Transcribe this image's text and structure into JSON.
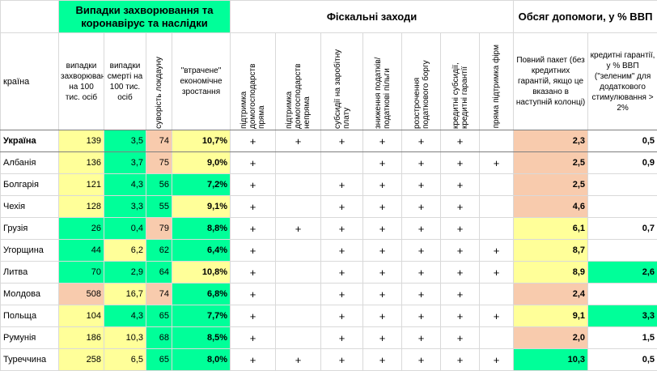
{
  "headers": {
    "group1": "Випадки захворювання та коронавірус та наслідки",
    "group2": "Фіскальні заходи",
    "group3": "Обсяг допомоги, у % ВВП",
    "country": "країна",
    "cases": "випадки захворювання на 100 тис. осіб",
    "deaths": "випадки смерті на 100 тис. осіб",
    "lockdown": "суворість локдауну",
    "lost_growth": "\"втрачене\" економічне зростання",
    "f1": "підтримка домогосподарств пряма",
    "f2": "підтримка домогосподарств непряма",
    "f3": "субсидії на заробітну плату",
    "f4": "зниження податків/ податкові пільги",
    "f5": "розстрочення податкового боргу",
    "f6": "кредитні субсидії, кредитні гарантії",
    "f7": "пряма підтримка фірм",
    "total": "Повний пакет (без кредитних гарантій, якщо це вказано в наступній колонці)",
    "credit": "кредитні гарантії, у % ВВП (\"зеленим\" для додаткового стимулювання > 2%"
  },
  "plus_symbol": "+",
  "colors": {
    "green": "#00ff99",
    "yellow": "#ffff99",
    "salmon": "#f8cbad"
  },
  "rows": [
    {
      "country": "Україна",
      "bold": true,
      "cases": "139",
      "deaths": "3,5",
      "lockdown": "74",
      "lost": "10,7%",
      "f": [
        1,
        1,
        1,
        1,
        1,
        1,
        0
      ],
      "total": "2,3",
      "credit": "0,5",
      "c": {
        "cases": "yellow",
        "deaths": "green",
        "lockdown": "salmon",
        "lost": "yellow",
        "total": "salmon",
        "credit": ""
      }
    },
    {
      "country": "Албанія",
      "cases": "136",
      "deaths": "3,7",
      "lockdown": "75",
      "lost": "9,0%",
      "f": [
        1,
        0,
        0,
        1,
        1,
        1,
        1
      ],
      "total": "2,5",
      "credit": "0,9",
      "c": {
        "cases": "yellow",
        "deaths": "green",
        "lockdown": "salmon",
        "lost": "yellow",
        "total": "salmon",
        "credit": ""
      }
    },
    {
      "country": "Болгарія",
      "cases": "121",
      "deaths": "4,3",
      "lockdown": "56",
      "lost": "7,2%",
      "f": [
        1,
        0,
        1,
        1,
        1,
        1,
        0
      ],
      "total": "2,5",
      "credit": "",
      "c": {
        "cases": "yellow",
        "deaths": "green",
        "lockdown": "green",
        "lost": "green",
        "total": "salmon",
        "credit": ""
      }
    },
    {
      "country": "Чехія",
      "cases": "128",
      "deaths": "3,3",
      "lockdown": "55",
      "lost": "9,1%",
      "f": [
        1,
        0,
        1,
        1,
        1,
        1,
        0
      ],
      "total": "4,6",
      "credit": "",
      "c": {
        "cases": "yellow",
        "deaths": "green",
        "lockdown": "green",
        "lost": "yellow",
        "total": "salmon",
        "credit": ""
      }
    },
    {
      "country": "Грузія",
      "cases": "26",
      "deaths": "0,4",
      "lockdown": "79",
      "lost": "8,8%",
      "f": [
        1,
        1,
        1,
        1,
        1,
        1,
        0
      ],
      "total": "6,1",
      "credit": "0,7",
      "c": {
        "cases": "green",
        "deaths": "green",
        "lockdown": "salmon",
        "lost": "green",
        "total": "yellow",
        "credit": ""
      }
    },
    {
      "country": "Угорщина",
      "cases": "44",
      "deaths": "6,2",
      "lockdown": "62",
      "lost": "6,4%",
      "f": [
        1,
        0,
        1,
        1,
        1,
        1,
        1
      ],
      "total": "8,7",
      "credit": "",
      "c": {
        "cases": "green",
        "deaths": "yellow",
        "lockdown": "green",
        "lost": "green",
        "total": "yellow",
        "credit": ""
      }
    },
    {
      "country": "Литва",
      "cases": "70",
      "deaths": "2,9",
      "lockdown": "64",
      "lost": "10,8%",
      "f": [
        1,
        0,
        1,
        1,
        1,
        1,
        1
      ],
      "total": "8,9",
      "credit": "2,6",
      "c": {
        "cases": "green",
        "deaths": "green",
        "lockdown": "green",
        "lost": "yellow",
        "total": "yellow",
        "credit": "green"
      }
    },
    {
      "country": "Молдова",
      "cases": "508",
      "deaths": "16,7",
      "lockdown": "74",
      "lost": "6,8%",
      "f": [
        1,
        0,
        1,
        1,
        1,
        1,
        0
      ],
      "total": "2,4",
      "credit": "",
      "c": {
        "cases": "salmon",
        "deaths": "yellow",
        "lockdown": "salmon",
        "lost": "green",
        "total": "salmon",
        "credit": ""
      }
    },
    {
      "country": "Польща",
      "cases": "104",
      "deaths": "4,3",
      "lockdown": "65",
      "lost": "7,7%",
      "f": [
        1,
        0,
        1,
        1,
        1,
        1,
        1
      ],
      "total": "9,1",
      "credit": "3,3",
      "c": {
        "cases": "yellow",
        "deaths": "green",
        "lockdown": "green",
        "lost": "green",
        "total": "yellow",
        "credit": "green"
      }
    },
    {
      "country": "Румунія",
      "cases": "186",
      "deaths": "10,3",
      "lockdown": "68",
      "lost": "8,5%",
      "f": [
        1,
        0,
        1,
        1,
        1,
        1,
        0
      ],
      "total": "2,0",
      "credit": "1,5",
      "c": {
        "cases": "yellow",
        "deaths": "yellow",
        "lockdown": "green",
        "lost": "green",
        "total": "salmon",
        "credit": ""
      }
    },
    {
      "country": "Туреччина",
      "cases": "258",
      "deaths": "6,5",
      "lockdown": "65",
      "lost": "8,0%",
      "f": [
        1,
        1,
        1,
        1,
        1,
        1,
        1
      ],
      "total": "10,3",
      "credit": "0,5",
      "c": {
        "cases": "yellow",
        "deaths": "yellow",
        "lockdown": "green",
        "lost": "green",
        "total": "green",
        "credit": ""
      }
    }
  ]
}
